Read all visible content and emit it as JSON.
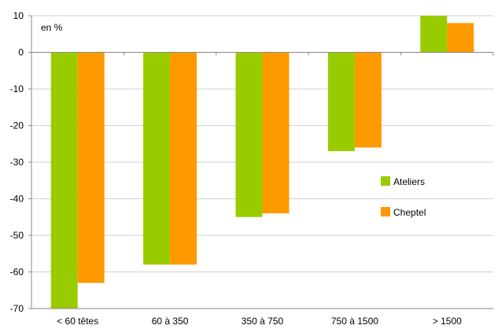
{
  "chart_data": {
    "type": "bar",
    "unit_label": "en %",
    "categories": [
      "< 60 têtes",
      "60 à 350",
      "350 à 750",
      "750 à 1500",
      "> 1500"
    ],
    "series": [
      {
        "name": "Ateliers",
        "color": "#99cc00",
        "values": [
          -71,
          -58,
          -45,
          -27,
          10
        ]
      },
      {
        "name": "Cheptel",
        "color": "#ff9900",
        "values": [
          -63,
          -58,
          -44,
          -26,
          8
        ]
      }
    ],
    "ylim": [
      -70,
      10
    ],
    "yticks": [
      10,
      0,
      -10,
      -20,
      -30,
      -40,
      -50,
      -60,
      -70
    ],
    "grid": true,
    "legend_position": "right"
  }
}
